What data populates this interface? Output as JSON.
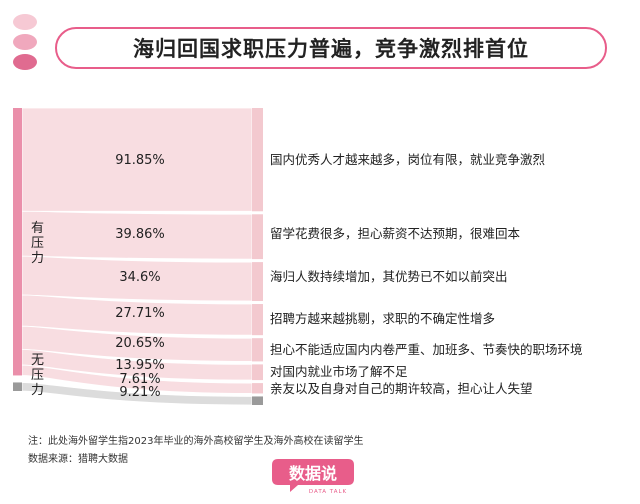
{
  "title": "海归回国求职压力普遍，竞争激烈排首位",
  "colors": {
    "accent": "#e85d8a",
    "flow_pink": "#f8dde1",
    "node_pink": "#ea8faa",
    "node_light": "#f3c9cf",
    "flow_grey": "#dcdcdc",
    "node_grey": "#9a9a9a"
  },
  "chart_data": {
    "type": "sankey",
    "sources": [
      {
        "id": "pressure",
        "label": "有压力"
      },
      {
        "id": "no_pressure",
        "label": "无压力"
      }
    ],
    "flows": [
      {
        "source": "pressure",
        "label": "国内优秀人才越来越多，岗位有限，就业竞争激烈",
        "value": 91.85,
        "value_label": "91.85%"
      },
      {
        "source": "pressure",
        "label": "留学花费很多，担心薪资不达预期，很难回本",
        "value": 39.86,
        "value_label": "39.86%"
      },
      {
        "source": "pressure",
        "label": "海归人数持续增加，其优势已不如以前突出",
        "value": 34.6,
        "value_label": "34.6%"
      },
      {
        "source": "pressure",
        "label": "招聘方越来越挑剔，求职的不确定性增多",
        "value": 27.71,
        "value_label": "27.71%"
      },
      {
        "source": "pressure",
        "label": "担心不能适应国内内卷严重、加班多、节奏快的职场环境",
        "value": 20.65,
        "value_label": "20.65%"
      },
      {
        "source": "pressure",
        "label": "对国内就业市场了解不足",
        "value": 13.95,
        "value_label": "13.95%"
      },
      {
        "source": "pressure",
        "label": "亲友以及自身对自己的期许较高，担心让人失望",
        "value": 9.21,
        "value_label": "9.21%"
      },
      {
        "source": "no_pressure",
        "label": "",
        "value": 7.61,
        "value_label": "7.61%"
      }
    ]
  },
  "footnotes": {
    "note": "注：此处海外留学生指2023年毕业的海外高校留学生及海外高校在读留学生",
    "source": "数据来源：猎聘大数据"
  },
  "logo": {
    "name": "数据说",
    "sub": "DATA TALK"
  }
}
